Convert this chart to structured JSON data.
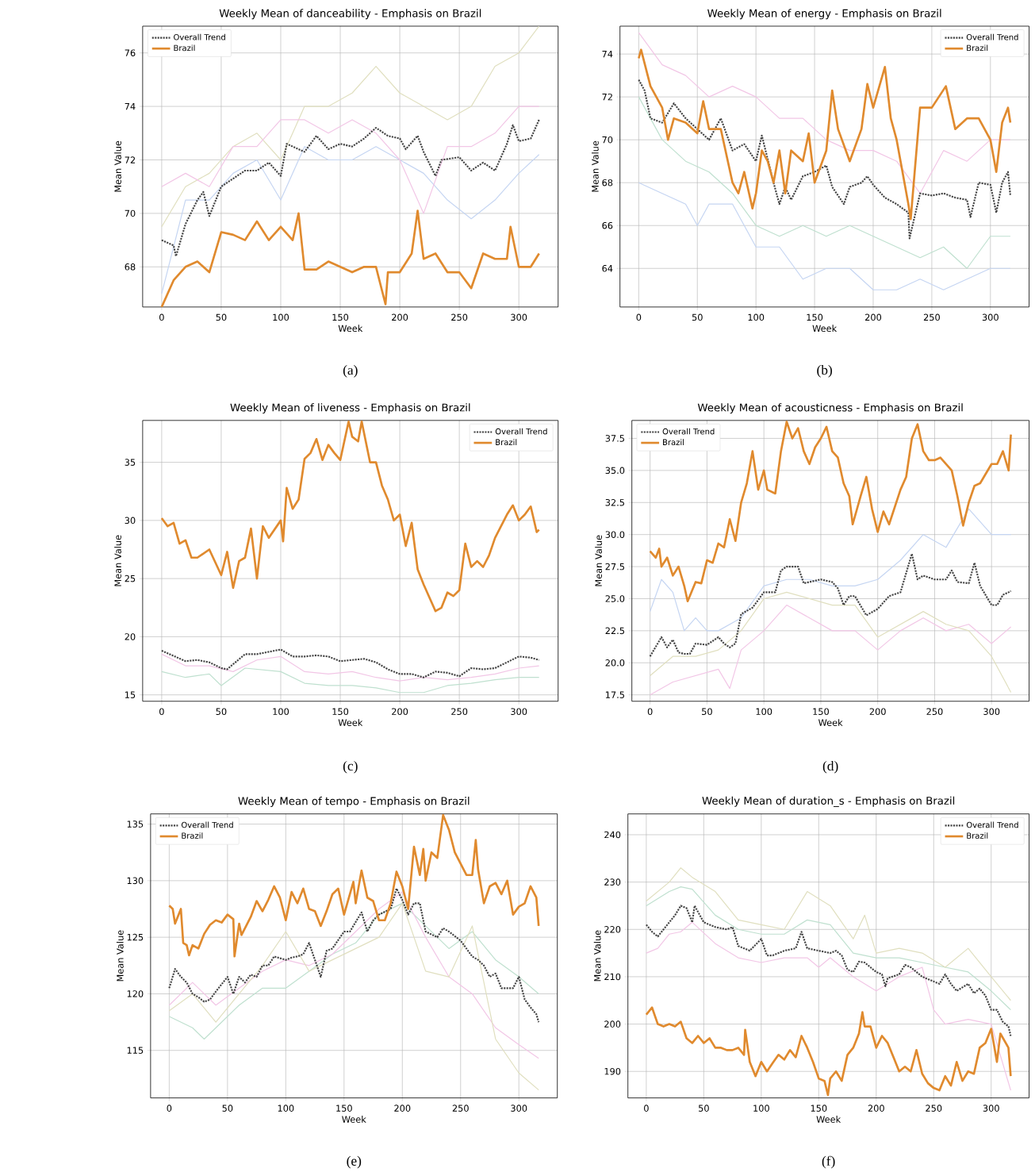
{
  "chart_data": [
    {
      "type": "line",
      "title": "Weekly Mean of danceability - Emphasis on Brazil",
      "xlabel": "Week",
      "ylabel": "Mean Value",
      "annotations": [
        "(a)"
      ],
      "xlim": [
        -16,
        333
      ],
      "ylim": [
        66.5,
        77.0
      ],
      "xticks": [
        0,
        50,
        100,
        150,
        200,
        250,
        300
      ],
      "yticks": [
        68,
        70,
        72,
        74,
        76
      ],
      "grid": true,
      "legend": "top left",
      "series": [
        {
          "color": "#e0dfbf",
          "x": [
            0,
            20,
            40,
            60,
            80,
            100,
            120,
            140,
            160,
            180,
            200,
            220,
            240,
            260,
            280,
            300,
            317
          ],
          "values": [
            69.5,
            71,
            71.5,
            72.5,
            73,
            72,
            74,
            74,
            74.5,
            75.5,
            74.5,
            74,
            73.5,
            74,
            75.5,
            76,
            77
          ]
        },
        {
          "color": "#c5d5f2",
          "x": [
            0,
            20,
            40,
            60,
            80,
            100,
            120,
            140,
            160,
            180,
            200,
            220,
            240,
            260,
            280,
            300,
            317
          ],
          "values": [
            67,
            70.5,
            70.5,
            71.5,
            72,
            70.5,
            72.5,
            72,
            72,
            72.5,
            72,
            71.5,
            70.5,
            69.8,
            70.5,
            71.5,
            72.2
          ]
        },
        {
          "color": "#f2c6e6",
          "x": [
            0,
            20,
            40,
            60,
            80,
            100,
            120,
            140,
            160,
            180,
            200,
            220,
            240,
            260,
            280,
            300,
            317
          ],
          "values": [
            71,
            71.5,
            71,
            72.5,
            72.5,
            73.5,
            73.5,
            73,
            73.5,
            73,
            72,
            70,
            72.5,
            72.5,
            73,
            74,
            74
          ]
        },
        {
          "name": "Overall Trend",
          "color": "#444444",
          "line_style": "dotted",
          "x": [
            0,
            10,
            12,
            20,
            30,
            35,
            40,
            50,
            60,
            70,
            80,
            90,
            100,
            105,
            110,
            120,
            130,
            140,
            150,
            160,
            170,
            180,
            190,
            200,
            205,
            215,
            220,
            230,
            235,
            250,
            260,
            270,
            280,
            290,
            295,
            300,
            310,
            317
          ],
          "values": [
            69.0,
            68.8,
            68.4,
            69.6,
            70.5,
            70.8,
            69.9,
            71.0,
            71.3,
            71.6,
            71.6,
            71.9,
            71.4,
            72.6,
            72.5,
            72.3,
            72.9,
            72.4,
            72.6,
            72.5,
            72.8,
            73.2,
            72.9,
            72.8,
            72.4,
            72.9,
            72.3,
            71.4,
            72.0,
            72.1,
            71.6,
            71.9,
            71.6,
            72.6,
            73.3,
            72.7,
            72.8,
            73.5
          ]
        },
        {
          "name": "Brazil",
          "color": "#e08a2e",
          "line_style": "solid",
          "x": [
            0,
            10,
            20,
            30,
            40,
            50,
            60,
            70,
            80,
            90,
            100,
            110,
            115,
            120,
            130,
            140,
            150,
            160,
            170,
            180,
            188,
            190,
            200,
            210,
            215,
            220,
            230,
            240,
            250,
            260,
            270,
            280,
            290,
            293,
            300,
            310,
            317
          ],
          "values": [
            66.5,
            67.5,
            68.0,
            68.2,
            67.8,
            69.3,
            69.2,
            69.0,
            69.7,
            69.0,
            69.5,
            69.0,
            70.0,
            67.9,
            67.9,
            68.2,
            68.0,
            67.8,
            68.0,
            68.0,
            66.6,
            67.8,
            67.8,
            68.5,
            70.1,
            68.3,
            68.5,
            67.8,
            67.8,
            67.2,
            68.5,
            68.3,
            68.3,
            69.5,
            68.0,
            68.0,
            68.5
          ]
        }
      ]
    },
    {
      "type": "line",
      "title": "Weekly Mean of energy - Emphasis on Brazil",
      "xlabel": "Week",
      "ylabel": "Mean Value",
      "annotations": [
        "(b)"
      ],
      "xlim": [
        -16,
        333
      ],
      "ylim": [
        62.2,
        75.3
      ],
      "xticks": [
        0,
        50,
        100,
        150,
        200,
        250,
        300
      ],
      "yticks": [
        64,
        66,
        68,
        70,
        72,
        74
      ],
      "grid": true,
      "legend": "top right",
      "series": [
        {
          "color": "#c5d5f2",
          "x": [
            0,
            20,
            40,
            50,
            60,
            80,
            100,
            120,
            140,
            160,
            180,
            200,
            220,
            240,
            260,
            280,
            300,
            317
          ],
          "values": [
            68,
            67.5,
            67,
            66,
            67,
            67,
            65,
            65,
            63.5,
            64,
            64,
            63,
            63,
            63.5,
            63,
            63.5,
            64,
            64
          ]
        },
        {
          "color": "#f2c6e6",
          "x": [
            0,
            20,
            40,
            60,
            80,
            100,
            120,
            140,
            160,
            180,
            200,
            220,
            240,
            260,
            280,
            300,
            317
          ],
          "values": [
            75,
            73.5,
            73,
            72,
            72.5,
            72,
            71,
            71,
            70,
            69.5,
            69.5,
            69,
            67.5,
            69.5,
            69,
            70,
            70
          ]
        },
        {
          "color": "#bfe0cf",
          "x": [
            0,
            20,
            40,
            60,
            80,
            100,
            120,
            140,
            160,
            180,
            200,
            220,
            240,
            260,
            280,
            300,
            317
          ],
          "values": [
            72,
            70,
            69,
            68.5,
            67.5,
            66,
            65.5,
            66,
            65.5,
            66,
            65.5,
            65,
            64.5,
            65,
            64,
            65.5,
            65.5
          ]
        },
        {
          "name": "Overall Trend",
          "color": "#444444",
          "line_style": "dotted",
          "x": [
            0,
            5,
            10,
            20,
            30,
            40,
            50,
            60,
            70,
            80,
            90,
            100,
            105,
            115,
            120,
            125,
            130,
            140,
            150,
            160,
            165,
            175,
            180,
            190,
            195,
            200,
            210,
            220,
            230,
            231,
            240,
            250,
            260,
            270,
            280,
            283,
            290,
            300,
            305,
            310,
            315,
            317
          ],
          "values": [
            72.8,
            72.3,
            71,
            70.8,
            71.7,
            71,
            70.5,
            70,
            71,
            69.5,
            69.8,
            69,
            70.2,
            68,
            67,
            67.8,
            67.2,
            68.3,
            68.5,
            68.8,
            67.8,
            67,
            67.8,
            68,
            68.3,
            67.9,
            67.3,
            67,
            66.6,
            65.4,
            67.5,
            67.4,
            67.5,
            67.3,
            67.2,
            66.4,
            68,
            67.9,
            66.6,
            68,
            68.5,
            67.4
          ]
        },
        {
          "name": "Brazil",
          "color": "#e08a2e",
          "line_style": "solid",
          "x": [
            0,
            2,
            10,
            20,
            25,
            30,
            40,
            50,
            55,
            60,
            70,
            80,
            85,
            90,
            97,
            100,
            105,
            110,
            115,
            120,
            125,
            130,
            140,
            145,
            150,
            160,
            165,
            170,
            180,
            190,
            195,
            200,
            210,
            215,
            220,
            230,
            232,
            240,
            250,
            262,
            270,
            280,
            290,
            300,
            305,
            310,
            315,
            317
          ],
          "values": [
            73.8,
            74.2,
            72.5,
            71.5,
            70,
            71,
            70.8,
            70.3,
            71.8,
            70.5,
            70.5,
            68,
            67.5,
            68.5,
            66.8,
            67.5,
            69.5,
            69,
            68,
            69.5,
            67.5,
            69.5,
            69,
            70.3,
            68,
            69.5,
            72.3,
            70.5,
            69,
            70.5,
            72.6,
            71.5,
            73.4,
            71,
            70,
            67,
            66.3,
            71.5,
            71.5,
            72.5,
            70.5,
            71,
            71,
            70,
            68.5,
            70.8,
            71.5,
            70.8
          ]
        }
      ]
    },
    {
      "type": "line",
      "title": "Weekly Mean of liveness - Emphasis on Brazil",
      "xlabel": "Week",
      "ylabel": "Mean Value",
      "annotations": [
        "(c)"
      ],
      "xlim": [
        -16,
        333
      ],
      "ylim": [
        14.45,
        38.6
      ],
      "xticks": [
        0,
        50,
        100,
        150,
        200,
        250,
        300
      ],
      "yticks": [
        15,
        20,
        25,
        30,
        35
      ],
      "grid": true,
      "legend": "top right",
      "series": [
        {
          "color": "#bfe0cf",
          "x": [
            0,
            20,
            40,
            50,
            70,
            100,
            120,
            140,
            160,
            180,
            200,
            220,
            240,
            260,
            280,
            300,
            317
          ],
          "values": [
            17,
            16.5,
            16.8,
            15.8,
            17.3,
            17,
            16,
            15.8,
            15.8,
            15.6,
            15.2,
            15.2,
            15.8,
            16,
            16.3,
            16.5,
            16.5
          ]
        },
        {
          "color": "#f2c6e6",
          "x": [
            0,
            20,
            40,
            60,
            80,
            100,
            120,
            140,
            160,
            180,
            200,
            220,
            240,
            260,
            280,
            300,
            317
          ],
          "values": [
            18.5,
            17.5,
            17.5,
            17,
            18,
            18.3,
            17,
            16.8,
            17,
            16.5,
            16.2,
            16.5,
            16.3,
            16.5,
            16.8,
            17.3,
            17.5
          ]
        },
        {
          "name": "Overall Trend",
          "color": "#444444",
          "line_style": "dotted",
          "x": [
            0,
            20,
            30,
            40,
            50,
            55,
            70,
            80,
            100,
            110,
            120,
            130,
            140,
            150,
            170,
            180,
            190,
            200,
            210,
            220,
            230,
            240,
            250,
            260,
            270,
            280,
            290,
            300,
            310,
            317
          ],
          "values": [
            18.8,
            17.9,
            18,
            17.8,
            17.3,
            17.2,
            18.5,
            18.5,
            18.9,
            18.3,
            18.3,
            18.4,
            18.3,
            17.9,
            18.1,
            17.8,
            17.2,
            16.8,
            16.8,
            16.5,
            17,
            16.9,
            16.6,
            17.3,
            17.2,
            17.3,
            17.8,
            18.3,
            18.2,
            18
          ]
        },
        {
          "name": "Brazil",
          "color": "#e08a2e",
          "line_style": "solid",
          "x": [
            0,
            5,
            10,
            15,
            20,
            25,
            30,
            40,
            50,
            55,
            60,
            65,
            70,
            75,
            80,
            85,
            90,
            100,
            102,
            105,
            110,
            115,
            120,
            125,
            130,
            135,
            140,
            145,
            150,
            157,
            160,
            165,
            168,
            175,
            180,
            185,
            190,
            195,
            200,
            205,
            210,
            215,
            220,
            230,
            235,
            240,
            245,
            250,
            255,
            260,
            265,
            270,
            275,
            280,
            285,
            290,
            295,
            300,
            305,
            310,
            315,
            317
          ],
          "values": [
            30.2,
            29.5,
            29.8,
            28,
            28.3,
            26.8,
            26.8,
            27.5,
            25.3,
            27.3,
            24.2,
            26.5,
            26.8,
            29.3,
            25.0,
            29.5,
            28.5,
            30,
            28.2,
            32.8,
            31,
            31.8,
            35.3,
            35.8,
            37,
            35.2,
            36.5,
            35.8,
            35.2,
            38.5,
            37.2,
            36.8,
            38.5,
            35,
            35,
            33,
            31.8,
            30,
            30.5,
            27.8,
            29.8,
            25.8,
            24.5,
            22.2,
            22.5,
            23.8,
            23.5,
            24,
            28,
            26,
            26.5,
            26,
            27,
            28.5,
            29.5,
            30.5,
            31.3,
            30,
            30.5,
            31.2,
            29,
            29.2
          ]
        }
      ]
    },
    {
      "type": "line",
      "title": "Weekly Mean of acousticness - Emphasis on Brazil",
      "xlabel": "Week",
      "ylabel": "Mean Value",
      "annotations": [
        "(d)"
      ],
      "xlim": [
        -16,
        333
      ],
      "ylim": [
        17.0,
        38.9
      ],
      "xticks": [
        0,
        50,
        100,
        150,
        200,
        250,
        300
      ],
      "yticks": [
        {
          "value": 17.5,
          "label": "17.5"
        },
        {
          "value": 20,
          "label": "20.0"
        },
        {
          "value": 22.5,
          "label": "22.5"
        },
        {
          "value": 25,
          "label": "25.0"
        },
        {
          "value": 27.5,
          "label": "27.5"
        },
        {
          "value": 30,
          "label": "30.0"
        },
        {
          "value": 32.5,
          "label": "32.5"
        },
        {
          "value": 35,
          "label": "35.0"
        },
        {
          "value": 37.5,
          "label": "37.5"
        }
      ],
      "grid": true,
      "legend": "top left",
      "series": [
        {
          "color": "#c5d5f2",
          "x": [
            0,
            10,
            20,
            30,
            40,
            50,
            60,
            70,
            80,
            100,
            120,
            140,
            160,
            180,
            200,
            220,
            240,
            260,
            280,
            300,
            317
          ],
          "values": [
            24,
            26.5,
            25.5,
            22.5,
            23.5,
            22.5,
            22.5,
            23,
            23.5,
            26,
            26.5,
            26.5,
            26,
            26,
            26.5,
            28,
            30,
            29,
            32,
            30,
            30
          ]
        },
        {
          "color": "#f2c6e6",
          "x": [
            0,
            20,
            40,
            60,
            70,
            80,
            100,
            120,
            140,
            160,
            180,
            200,
            220,
            240,
            260,
            280,
            300,
            317
          ],
          "values": [
            17.5,
            18.5,
            19,
            19.5,
            18,
            21,
            22.5,
            24.5,
            23.5,
            22.5,
            22.5,
            21,
            22.5,
            23.5,
            22.5,
            23,
            21.5,
            22.8
          ]
        },
        {
          "color": "#e0dfbf",
          "x": [
            0,
            20,
            40,
            60,
            80,
            100,
            120,
            140,
            160,
            180,
            200,
            220,
            240,
            260,
            280,
            300,
            317
          ],
          "values": [
            19,
            20.5,
            20.5,
            21,
            22.5,
            25,
            25.5,
            25,
            24.5,
            24.5,
            22,
            23,
            24,
            23,
            22.5,
            20.5,
            17.7
          ]
        },
        {
          "name": "Overall Trend",
          "color": "#444444",
          "line_style": "dotted",
          "x": [
            0,
            10,
            15,
            20,
            25,
            30,
            35,
            40,
            50,
            60,
            65,
            70,
            75,
            80,
            90,
            100,
            110,
            115,
            120,
            130,
            135,
            140,
            150,
            160,
            165,
            170,
            175,
            180,
            190,
            200,
            210,
            220,
            230,
            235,
            240,
            250,
            260,
            265,
            270,
            280,
            285,
            290,
            300,
            305,
            310,
            315,
            317
          ],
          "values": [
            20.5,
            22,
            21.2,
            21.8,
            20.8,
            20.7,
            20.7,
            21.5,
            21.4,
            22,
            21.5,
            21.2,
            21.5,
            23.8,
            24.3,
            25.5,
            25.5,
            27.2,
            27.5,
            27.5,
            26.2,
            26.3,
            26.5,
            26.3,
            25.8,
            24.5,
            25.2,
            25.2,
            23.7,
            24.2,
            25.2,
            25.5,
            28.5,
            26.5,
            26.8,
            26.5,
            26.5,
            27.2,
            26.3,
            26.2,
            27.8,
            26,
            24.5,
            24.5,
            25.3,
            25.5,
            25.6
          ]
        },
        {
          "name": "Brazil",
          "color": "#e08a2e",
          "line_style": "solid",
          "x": [
            0,
            5,
            8,
            10,
            15,
            20,
            25,
            30,
            33,
            40,
            45,
            50,
            55,
            60,
            65,
            70,
            75,
            80,
            85,
            90,
            95,
            100,
            103,
            110,
            115,
            120,
            125,
            130,
            135,
            140,
            145,
            150,
            155,
            160,
            165,
            170,
            175,
            178,
            185,
            190,
            195,
            200,
            205,
            210,
            220,
            225,
            230,
            235,
            240,
            245,
            250,
            255,
            260,
            265,
            270,
            275,
            280,
            285,
            290,
            300,
            305,
            310,
            315,
            317
          ],
          "values": [
            28.7,
            28.2,
            28.9,
            27.5,
            28.2,
            26.8,
            27.5,
            26,
            24.8,
            26.3,
            26.2,
            28,
            27.8,
            29.3,
            29,
            31.2,
            29.5,
            32.5,
            34,
            36.5,
            33.5,
            35,
            33.5,
            33.2,
            36.5,
            38.8,
            37.5,
            38.3,
            36.5,
            35.5,
            36.8,
            37.5,
            38.4,
            36.5,
            36,
            34,
            33,
            30.8,
            33,
            34.5,
            32,
            30.2,
            31.8,
            30.8,
            33.5,
            34.5,
            37.5,
            38.6,
            36.5,
            35.8,
            35.8,
            36,
            35.5,
            35,
            33,
            30.7,
            32.5,
            33.8,
            34,
            35.5,
            35.5,
            36.5,
            35,
            37.8
          ]
        }
      ]
    },
    {
      "type": "line",
      "title": "Weekly Mean of tempo - Emphasis on Brazil",
      "xlabel": "Week",
      "ylabel": "Mean Value",
      "annotations": [
        "(e)"
      ],
      "xlim": [
        -16,
        333
      ],
      "ylim": [
        110.8,
        135.9
      ],
      "xticks": [
        0,
        50,
        100,
        150,
        200,
        250,
        300
      ],
      "yticks": [
        115,
        120,
        125,
        130,
        135
      ],
      "grid": true,
      "legend": "top left",
      "series": [
        {
          "color": "#bfe0cf",
          "x": [
            0,
            20,
            30,
            40,
            60,
            80,
            100,
            120,
            140,
            160,
            180,
            200,
            220,
            240,
            260,
            280,
            300,
            317
          ],
          "values": [
            118,
            117,
            116,
            117,
            119,
            120.5,
            120.5,
            122,
            123.5,
            124.5,
            127,
            128,
            126,
            124,
            125.5,
            123,
            121.5,
            120
          ]
        },
        {
          "color": "#f2c6e6",
          "x": [
            0,
            20,
            40,
            60,
            80,
            100,
            120,
            140,
            160,
            180,
            200,
            220,
            240,
            260,
            280,
            300,
            317
          ],
          "values": [
            119,
            121,
            119,
            120.5,
            122,
            123,
            122.5,
            123.5,
            125.5,
            127.5,
            129,
            125,
            121.5,
            120,
            117,
            115.5,
            114.3
          ]
        },
        {
          "color": "#e0dfbf",
          "x": [
            0,
            20,
            40,
            60,
            80,
            100,
            120,
            140,
            160,
            180,
            200,
            220,
            240,
            260,
            280,
            300,
            317
          ],
          "values": [
            118.5,
            120,
            117.5,
            120,
            122.5,
            125.5,
            122,
            123,
            124,
            125,
            128,
            122,
            121.5,
            126,
            116,
            113,
            111.5
          ]
        },
        {
          "name": "Overall Trend",
          "color": "#444444",
          "line_style": "dotted",
          "x": [
            0,
            5,
            10,
            15,
            20,
            25,
            30,
            35,
            40,
            50,
            55,
            60,
            65,
            70,
            75,
            80,
            85,
            90,
            100,
            105,
            110,
            115,
            120,
            130,
            135,
            140,
            150,
            155,
            165,
            170,
            175,
            180,
            190,
            195,
            200,
            205,
            210,
            215,
            220,
            230,
            235,
            240,
            250,
            260,
            265,
            270,
            275,
            280,
            285,
            290,
            295,
            300,
            305,
            310,
            315,
            317
          ],
          "values": [
            120.5,
            122.2,
            121.5,
            121,
            120,
            119.7,
            119.3,
            119.5,
            120.2,
            121.5,
            120,
            121.5,
            121,
            121.7,
            121.5,
            122.5,
            122.5,
            123.3,
            123,
            123.2,
            123.3,
            123.5,
            124.5,
            121.5,
            123.8,
            124,
            125.5,
            125.5,
            127.2,
            125.5,
            126.5,
            127,
            127.5,
            129.3,
            128.3,
            127,
            128,
            128,
            125.5,
            125,
            125.8,
            125.5,
            124.7,
            123.3,
            123,
            122.5,
            121.5,
            121.8,
            120.5,
            120.5,
            120.5,
            121.5,
            119.5,
            118.8,
            118.2,
            117.5
          ]
        },
        {
          "name": "Brazil",
          "color": "#e08a2e",
          "line_style": "solid",
          "x": [
            0,
            3,
            5,
            10,
            12,
            15,
            17,
            20,
            25,
            30,
            35,
            40,
            45,
            50,
            55,
            56,
            60,
            62,
            70,
            75,
            80,
            85,
            90,
            95,
            100,
            105,
            110,
            115,
            120,
            125,
            130,
            135,
            140,
            145,
            150,
            155,
            158,
            160,
            165,
            170,
            175,
            180,
            185,
            190,
            195,
            200,
            205,
            210,
            215,
            218,
            220,
            225,
            230,
            235,
            240,
            245,
            250,
            255,
            260,
            263,
            265,
            270,
            275,
            280,
            285,
            290,
            295,
            300,
            305,
            310,
            315,
            317
          ],
          "values": [
            127.8,
            127.5,
            126.2,
            127.5,
            124.5,
            124.3,
            123.4,
            124.3,
            124,
            125.3,
            126.1,
            126.5,
            126.3,
            127,
            126.6,
            123.3,
            126.2,
            125.2,
            126.8,
            128.2,
            127.3,
            128.3,
            129.5,
            128.5,
            126.5,
            129,
            128,
            129.3,
            127.5,
            127.3,
            126,
            127.3,
            128.8,
            129.3,
            127,
            128.8,
            129.9,
            128,
            130.9,
            128.5,
            128.2,
            126.5,
            126.5,
            128,
            130.8,
            129.5,
            127.5,
            133,
            130.5,
            132.8,
            130,
            132.5,
            132,
            135.8,
            134.5,
            132.5,
            131.5,
            130.5,
            130.5,
            133.6,
            131,
            128,
            129.5,
            129.8,
            128.8,
            130,
            127,
            127.7,
            128,
            129.5,
            128.5,
            126
          ]
        }
      ]
    },
    {
      "type": "line",
      "title": "Weekly Mean of duration_s - Emphasis on Brazil",
      "xlabel": "Week",
      "ylabel": "Mean Value",
      "annotations": [
        "(f)"
      ],
      "xlim": [
        -16,
        333
      ],
      "ylim": [
        184.4,
        244.4
      ],
      "xticks": [
        0,
        50,
        100,
        150,
        200,
        250,
        300
      ],
      "yticks": [
        190,
        200,
        210,
        220,
        230,
        240
      ],
      "grid": true,
      "legend": "top right",
      "series": [
        {
          "color": "#f2c6e6",
          "x": [
            0,
            10,
            20,
            30,
            40,
            60,
            80,
            100,
            120,
            140,
            150,
            160,
            180,
            200,
            220,
            240,
            250,
            260,
            280,
            300,
            317
          ],
          "values": [
            215,
            216,
            219,
            219.5,
            221.5,
            217,
            214,
            213,
            214,
            214,
            212,
            214,
            210,
            207,
            210,
            212,
            203,
            200,
            201,
            200,
            186
          ]
        },
        {
          "color": "#bfe0cf",
          "x": [
            0,
            20,
            30,
            40,
            60,
            80,
            100,
            120,
            140,
            160,
            180,
            200,
            220,
            240,
            260,
            280,
            300,
            317
          ],
          "values": [
            225,
            228,
            229,
            228.5,
            223,
            220,
            219,
            219,
            222,
            221,
            215,
            214,
            214,
            213,
            212,
            211,
            207,
            203
          ]
        },
        {
          "color": "#e0dfbf",
          "x": [
            0,
            20,
            30,
            40,
            60,
            80,
            100,
            120,
            140,
            160,
            180,
            190,
            200,
            220,
            240,
            260,
            280,
            300,
            317
          ],
          "values": [
            226,
            230,
            233,
            231,
            228,
            222,
            221,
            220,
            228,
            225,
            218,
            223,
            215,
            216,
            215,
            212,
            216,
            210,
            205
          ]
        },
        {
          "name": "Overall Trend",
          "color": "#444444",
          "line_style": "dotted",
          "x": [
            0,
            5,
            10,
            15,
            20,
            25,
            30,
            35,
            40,
            42,
            50,
            60,
            70,
            75,
            80,
            90,
            100,
            105,
            110,
            120,
            130,
            135,
            140,
            150,
            160,
            165,
            170,
            175,
            180,
            185,
            190,
            200,
            205,
            208,
            210,
            220,
            225,
            230,
            240,
            250,
            255,
            260,
            265,
            270,
            280,
            285,
            290,
            295,
            300,
            305,
            310,
            315,
            317
          ],
          "values": [
            221,
            219.5,
            218.5,
            220,
            221.5,
            223,
            225,
            224.5,
            221.5,
            225,
            221.5,
            220.5,
            220,
            220.5,
            216.5,
            215.5,
            218,
            214.5,
            214.5,
            215.5,
            216,
            219.5,
            216,
            215.5,
            215,
            215.5,
            214.5,
            211.5,
            211,
            213.2,
            213,
            211,
            210.5,
            208,
            209.7,
            210.5,
            212.5,
            212,
            210,
            209,
            208.5,
            210.5,
            208.5,
            207,
            208.5,
            206.5,
            207.5,
            206,
            203,
            203,
            200.5,
            199.5,
            197.5
          ]
        },
        {
          "name": "Brazil",
          "color": "#e08a2e",
          "line_style": "solid",
          "x": [
            0,
            5,
            10,
            15,
            20,
            25,
            30,
            35,
            40,
            45,
            50,
            55,
            60,
            65,
            70,
            75,
            80,
            85,
            86,
            90,
            95,
            100,
            105,
            110,
            115,
            120,
            125,
            130,
            135,
            140,
            145,
            150,
            155,
            158,
            160,
            165,
            170,
            175,
            180,
            185,
            188,
            190,
            195,
            200,
            205,
            210,
            215,
            220,
            225,
            230,
            235,
            240,
            245,
            250,
            255,
            260,
            265,
            270,
            275,
            280,
            285,
            290,
            295,
            300,
            305,
            308,
            315,
            317
          ],
          "values": [
            202,
            203.5,
            200,
            199.5,
            200,
            199.5,
            200.5,
            197,
            196,
            197.5,
            196,
            197,
            195,
            195,
            194.5,
            194.5,
            195,
            193.5,
            198.8,
            192,
            189,
            192,
            190,
            191.8,
            193.5,
            192.5,
            194.5,
            193,
            197.5,
            195,
            192,
            188.5,
            188,
            185,
            188.5,
            190,
            188,
            193.5,
            195,
            198,
            202.5,
            199.5,
            199.5,
            195,
            197.5,
            196,
            193,
            190,
            191,
            190,
            194.5,
            189.5,
            187.5,
            186.5,
            186,
            189,
            187,
            192,
            188,
            190,
            189.5,
            195,
            196,
            199,
            192,
            198,
            195,
            189
          ]
        }
      ]
    }
  ]
}
